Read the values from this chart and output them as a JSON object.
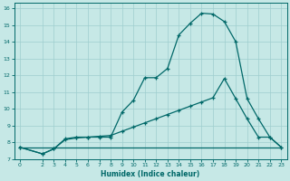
{
  "xlabel": "Humidex (Indice chaleur)",
  "bg_color": "#c6e8e6",
  "grid_color": "#9ecece",
  "line_color": "#006868",
  "xlim": [
    -0.5,
    23.5
  ],
  "ylim": [
    7,
    16.3
  ],
  "xticks": [
    0,
    2,
    3,
    4,
    5,
    6,
    7,
    8,
    9,
    10,
    11,
    12,
    13,
    14,
    15,
    16,
    17,
    18,
    19,
    20,
    21,
    22,
    23
  ],
  "yticks": [
    7,
    8,
    9,
    10,
    11,
    12,
    13,
    14,
    15,
    16
  ],
  "curve1_x": [
    0,
    2,
    3,
    4,
    5,
    6,
    7,
    8,
    9,
    10,
    11,
    12,
    13,
    14,
    15,
    16,
    17,
    18,
    19,
    20,
    21,
    22,
    23
  ],
  "curve1_y": [
    7.7,
    7.3,
    7.6,
    8.2,
    8.3,
    8.3,
    8.3,
    8.3,
    9.8,
    10.5,
    11.85,
    11.85,
    12.4,
    14.4,
    15.1,
    15.7,
    15.65,
    15.2,
    14.0,
    10.6,
    9.4,
    8.3,
    7.7
  ],
  "curve2_x": [
    0,
    2,
    3,
    4,
    5,
    6,
    7,
    8,
    9,
    10,
    11,
    12,
    13,
    14,
    15,
    16,
    17,
    18,
    19,
    20,
    21,
    22,
    23
  ],
  "curve2_y": [
    7.7,
    7.3,
    7.6,
    8.15,
    8.25,
    8.3,
    8.35,
    8.4,
    8.65,
    8.9,
    9.15,
    9.4,
    9.65,
    9.9,
    10.15,
    10.4,
    10.65,
    11.8,
    10.6,
    9.4,
    8.3,
    8.3,
    7.7
  ],
  "curve3_x": [
    0,
    23
  ],
  "curve3_y": [
    7.7,
    7.7
  ]
}
